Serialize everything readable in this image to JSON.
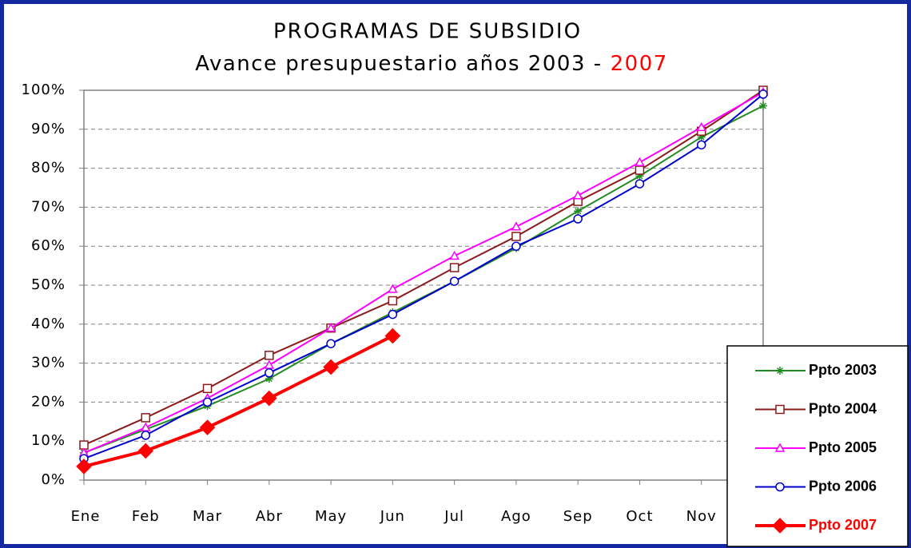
{
  "chart_data": {
    "type": "line",
    "title": "PROGRAMAS DE SUBSIDIO",
    "subtitle": "Avance presupuestario años 2003 -",
    "subtitle_highlight": "2007",
    "subtitle_highlight_color": "#ff0000",
    "categories": [
      "Ene",
      "Feb",
      "Mar",
      "Abr",
      "May",
      "Jun",
      "Jul",
      "Ago",
      "Sep",
      "Oct",
      "Nov",
      null
    ],
    "ylim": [
      0,
      100
    ],
    "yticks": [
      {
        "value": 0,
        "label": "0%"
      },
      {
        "value": 10,
        "label": "10%"
      },
      {
        "value": 20,
        "label": "20%"
      },
      {
        "value": 30,
        "label": "30%"
      },
      {
        "value": 40,
        "label": "40%"
      },
      {
        "value": 50,
        "label": "50%"
      },
      {
        "value": 60,
        "label": "60%"
      },
      {
        "value": 70,
        "label": "70%"
      },
      {
        "value": 80,
        "label": "80%"
      },
      {
        "value": 90,
        "label": "90%"
      },
      {
        "value": 100,
        "label": "100%"
      }
    ],
    "grid": true,
    "legend": "lower right",
    "series": [
      {
        "name": "Ppto 2003",
        "color": "#228b22",
        "marker": "star",
        "label_color": "#000000",
        "values": [
          7,
          13,
          19,
          26,
          35,
          43,
          51,
          59.5,
          69,
          78,
          88,
          96
        ]
      },
      {
        "name": "Ppto 2004",
        "color": "#8b1a1a",
        "marker": "square",
        "label_color": "#000000",
        "values": [
          9,
          16,
          23.5,
          32,
          39,
          46,
          54.5,
          62.5,
          71.5,
          79.5,
          89.5,
          100
        ]
      },
      {
        "name": "Ppto 2005",
        "color": "#ff00ff",
        "marker": "triangle",
        "label_color": "#000000",
        "values": [
          7,
          13.5,
          21,
          29.5,
          39,
          49,
          57.5,
          65,
          73,
          81.5,
          90.5,
          99.5
        ]
      },
      {
        "name": "Ppto 2006",
        "color": "#0000cc",
        "marker": "circle",
        "label_color": "#000000",
        "values": [
          5.5,
          11.5,
          20,
          27.5,
          35,
          42.5,
          51,
          60,
          67,
          76,
          86,
          99
        ]
      },
      {
        "name": "Ppto 2007",
        "color": "#ff0000",
        "marker": "diamond",
        "label_color": "#ff0000",
        "values": [
          3.5,
          7.5,
          13.5,
          21,
          29,
          37,
          null,
          null,
          null,
          null,
          null,
          null
        ]
      }
    ]
  }
}
